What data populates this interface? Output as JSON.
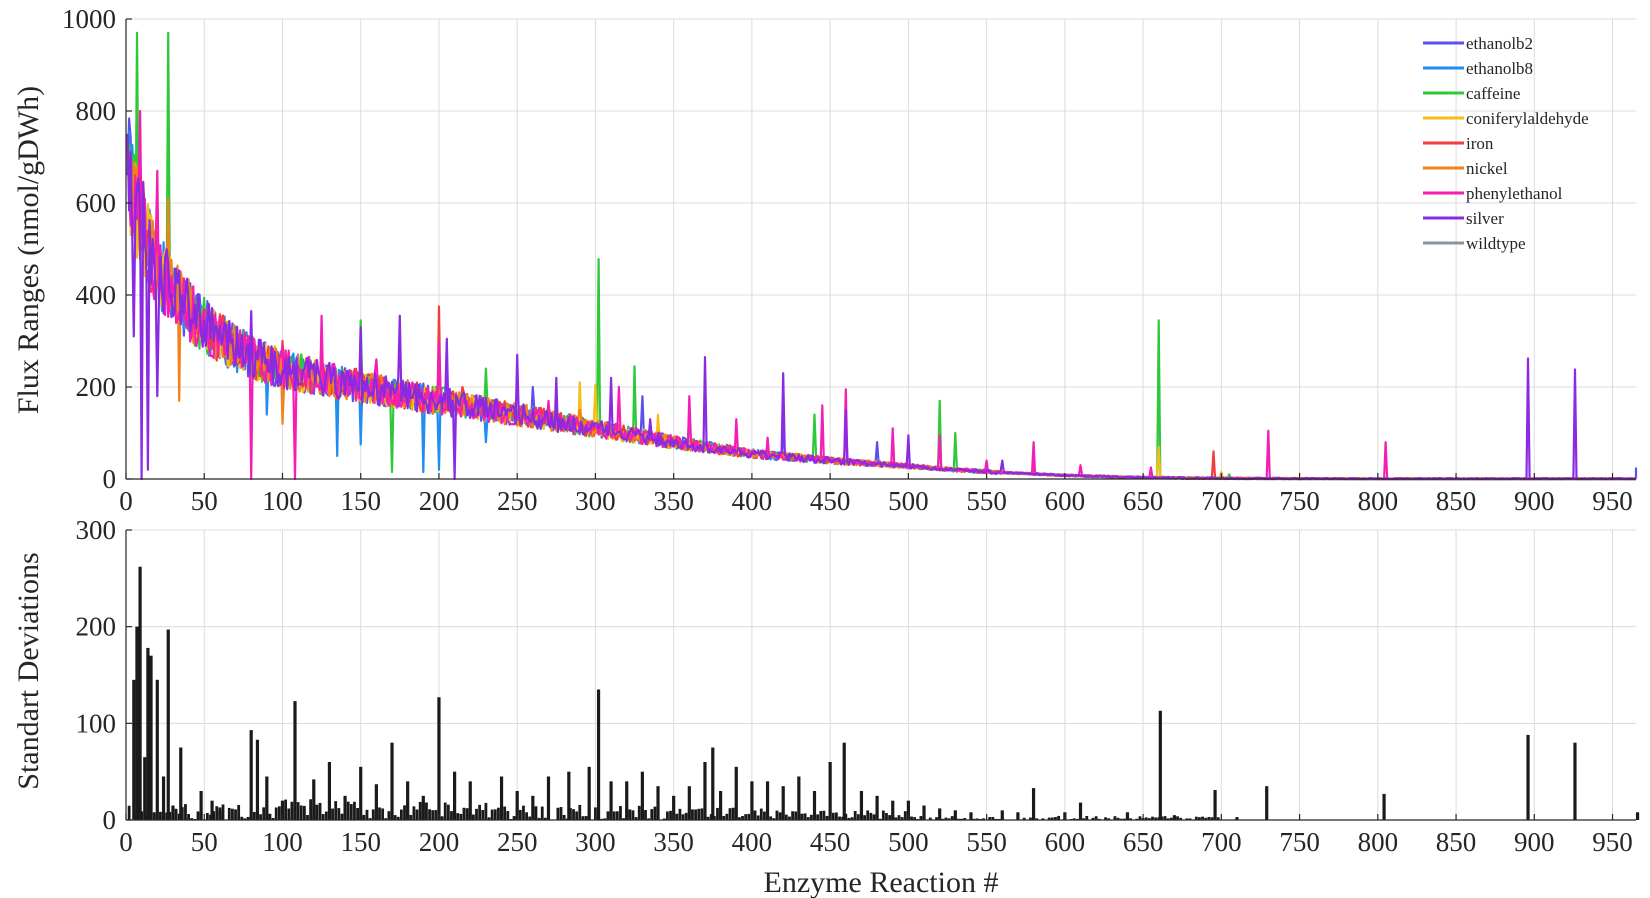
{
  "colors": {
    "ethanolb2": "#5b4ff0",
    "ethanolb8": "#1f8ef0",
    "caffeine": "#2ec83a",
    "coniferylaldehyde": "#f5be14",
    "iron": "#f23d3d",
    "nickel": "#f2821a",
    "phenylethanol": "#f51eb4",
    "silver": "#8a2be2",
    "wildtype": "#8a939e",
    "bars": "#1a1a1a"
  },
  "chart_data": [
    {
      "type": "line",
      "ylabel": "Flux Ranges (nmol/gDWh)",
      "xlabel": "",
      "xlim": [
        0,
        965
      ],
      "ylim": [
        0,
        1000
      ],
      "x_ticks": [
        0,
        50,
        100,
        150,
        200,
        250,
        300,
        350,
        400,
        450,
        500,
        550,
        600,
        650,
        700,
        750,
        800,
        850,
        900,
        950
      ],
      "y_ticks": [
        0,
        200,
        400,
        600,
        800,
        1000
      ],
      "grid": true,
      "legend_position": "top-right",
      "baseline_curve": {
        "series": "wildtype",
        "x": [
          1,
          3,
          6,
          10,
          15,
          20,
          27,
          35,
          45,
          55,
          65,
          80,
          100,
          130,
          160,
          200,
          250,
          300,
          350,
          400,
          450,
          500,
          530,
          560,
          600,
          640,
          680,
          720,
          800,
          965
        ],
        "y": [
          705,
          640,
          590,
          560,
          500,
          460,
          420,
          385,
          350,
          320,
          295,
          265,
          240,
          215,
          195,
          170,
          140,
          110,
          80,
          55,
          40,
          28,
          20,
          14,
          8,
          4,
          2,
          1,
          0,
          0
        ]
      },
      "series": [
        {
          "name": "ethanolb2",
          "spikes": [
            [
              30,
              380
            ],
            [
              130,
              230
            ],
            [
              205,
              260
            ],
            [
              260,
              200
            ],
            [
              330,
              180
            ],
            [
              420,
              120
            ],
            [
              480,
              80
            ],
            [
              966,
              25
            ]
          ]
        },
        {
          "name": "ethanolb8",
          "spikes": [
            [
              90,
              140
            ],
            [
              100,
              150
            ],
            [
              135,
              50
            ],
            [
              150,
              75
            ],
            [
              190,
              15
            ],
            [
              200,
              20
            ],
            [
              230,
              80
            ]
          ]
        },
        {
          "name": "caffeine",
          "spikes": [
            [
              7,
              970
            ],
            [
              27,
              970
            ],
            [
              150,
              345
            ],
            [
              170,
              15
            ],
            [
              230,
              240
            ],
            [
              302,
              478
            ],
            [
              325,
              245
            ],
            [
              360,
              150
            ],
            [
              440,
              140
            ],
            [
              520,
              170
            ],
            [
              530,
              100
            ],
            [
              660,
              345
            ],
            [
              705,
              10
            ]
          ]
        },
        {
          "name": "coniferylaldehyde",
          "spikes": [
            [
              290,
              210
            ],
            [
              300,
              205
            ],
            [
              340,
              140
            ],
            [
              460,
              110
            ],
            [
              660,
              70
            ],
            [
              700,
              15
            ]
          ]
        },
        {
          "name": "iron",
          "spikes": [
            [
              85,
              280
            ],
            [
              100,
              300
            ],
            [
              200,
              375
            ],
            [
              215,
              200
            ],
            [
              280,
              130
            ],
            [
              580,
              30
            ],
            [
              695,
              60
            ]
          ]
        },
        {
          "name": "nickel",
          "spikes": [
            [
              27,
              610
            ],
            [
              34,
              170
            ],
            [
              85,
              250
            ],
            [
              100,
              120
            ],
            [
              290,
              150
            ]
          ]
        },
        {
          "name": "phenylethanol",
          "spikes": [
            [
              9,
              800
            ],
            [
              20,
              670
            ],
            [
              80,
              0
            ],
            [
              100,
              290
            ],
            [
              108,
              0
            ],
            [
              125,
              355
            ],
            [
              160,
              260
            ],
            [
              200,
              300
            ],
            [
              270,
              170
            ],
            [
              315,
              200
            ],
            [
              360,
              180
            ],
            [
              390,
              130
            ],
            [
              410,
              90
            ],
            [
              445,
              160
            ],
            [
              460,
              195
            ],
            [
              490,
              110
            ],
            [
              520,
              95
            ],
            [
              550,
              40
            ],
            [
              580,
              80
            ],
            [
              610,
              30
            ],
            [
              655,
              25
            ],
            [
              730,
              105
            ],
            [
              805,
              80
            ]
          ]
        },
        {
          "name": "silver",
          "spikes": [
            [
              5,
              310
            ],
            [
              10,
              0
            ],
            [
              14,
              20
            ],
            [
              20,
              180
            ],
            [
              40,
              390
            ],
            [
              80,
              365
            ],
            [
              120,
              250
            ],
            [
              150,
              330
            ],
            [
              175,
              355
            ],
            [
              205,
              305
            ],
            [
              210,
              0
            ],
            [
              250,
              270
            ],
            [
              275,
              220
            ],
            [
              310,
              220
            ],
            [
              335,
              130
            ],
            [
              370,
              265
            ],
            [
              420,
              230
            ],
            [
              460,
              150
            ],
            [
              500,
              95
            ],
            [
              560,
              40
            ],
            [
              896,
              262
            ],
            [
              926,
              238
            ]
          ]
        },
        {
          "name": "wildtype",
          "spikes": []
        }
      ]
    },
    {
      "type": "bar",
      "ylabel": "Standart Deviations",
      "xlabel": "Enzyme Reaction #",
      "xlim": [
        0,
        965
      ],
      "ylim": [
        0,
        300
      ],
      "x_ticks": [
        0,
        50,
        100,
        150,
        200,
        250,
        300,
        350,
        400,
        450,
        500,
        550,
        600,
        650,
        700,
        750,
        800,
        850,
        900,
        950
      ],
      "y_ticks": [
        0,
        100,
        200,
        300
      ],
      "grid": true,
      "series": [
        {
          "name": "",
          "x": [
            5,
            7,
            9,
            12,
            14,
            16,
            20,
            24,
            27,
            30,
            35,
            48,
            55,
            60,
            80,
            84,
            90,
            100,
            108,
            120,
            130,
            140,
            150,
            160,
            170,
            180,
            190,
            200,
            210,
            220,
            240,
            250,
            260,
            270,
            283,
            296,
            302,
            310,
            320,
            330,
            340,
            350,
            360,
            370,
            375,
            380,
            390,
            400,
            410,
            420,
            430,
            440,
            450,
            459,
            470,
            480,
            490,
            500,
            510,
            520,
            530,
            540,
            560,
            570,
            580,
            600,
            610,
            640,
            661,
            670,
            696,
            710,
            729,
            760,
            804,
            850,
            896,
            926,
            966
          ],
          "y": [
            145,
            200,
            262,
            65,
            178,
            170,
            145,
            45,
            197,
            15,
            75,
            30,
            20,
            10,
            93,
            83,
            45,
            20,
            123,
            42,
            60,
            25,
            55,
            37,
            80,
            40,
            25,
            127,
            50,
            40,
            45,
            30,
            25,
            45,
            50,
            55,
            135,
            40,
            40,
            50,
            35,
            25,
            35,
            60,
            75,
            30,
            55,
            40,
            40,
            35,
            45,
            30,
            60,
            80,
            30,
            25,
            20,
            20,
            15,
            12,
            10,
            8,
            10,
            8,
            33,
            8,
            18,
            8,
            113,
            5,
            31,
            3,
            35,
            0,
            27,
            0,
            88,
            80,
            8
          ]
        }
      ]
    }
  ]
}
